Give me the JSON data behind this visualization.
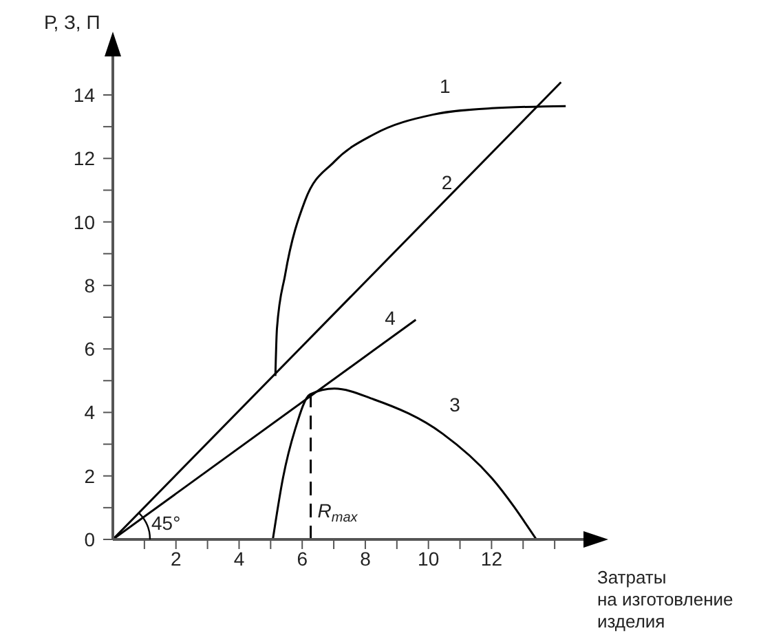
{
  "chart_data": {
    "type": "line",
    "xlabel": "Затраты\nна изготовление\nизделия",
    "ylabel": "Р, З, П",
    "xlim": [
      0,
      15
    ],
    "ylim": [
      0,
      15.3
    ],
    "xticks": [
      {
        "value": 1,
        "label": null
      },
      2,
      {
        "value": 3,
        "label": null
      },
      4,
      {
        "value": 5,
        "label": null
      },
      6,
      {
        "value": 7,
        "label": null
      },
      8,
      {
        "value": 9,
        "label": null
      },
      10,
      {
        "value": 11,
        "label": null
      },
      12,
      {
        "value": 13,
        "label": null
      },
      {
        "value": 14,
        "label": null
      }
    ],
    "yticks": [
      0,
      {
        "value": 1,
        "label": null
      },
      2,
      {
        "value": 3,
        "label": null
      },
      4,
      {
        "value": 5,
        "label": null
      },
      6,
      {
        "value": 7,
        "label": null
      },
      8,
      {
        "value": 9,
        "label": null
      },
      10,
      {
        "value": 11,
        "label": null
      },
      12,
      {
        "value": 13,
        "label": null
      },
      14
    ],
    "grid": false,
    "marker": "none",
    "line_style": "solid",
    "series": [
      {
        "color": "#000000",
        "x": [
          5.15,
          5.2,
          5.46,
          6.09,
          7.02,
          8.27,
          10.14,
          12.0,
          14.35
        ],
        "values": [
          5.15,
          6.64,
          8.34,
          10.67,
          11.9,
          12.76,
          13.38,
          13.58,
          13.65
        ]
      },
      {
        "color": "#000000",
        "x": [
          0,
          14.2
        ],
        "values": [
          0,
          14.4
        ]
      },
      {
        "color": "#000000",
        "x": [
          5.07,
          5.39,
          5.78,
          6.25,
          7.02,
          8.27,
          10.45,
          12.01,
          13.42
        ],
        "values": [
          0,
          1.93,
          3.48,
          4.57,
          4.75,
          4.41,
          3.33,
          1.93,
          0
        ]
      },
      {
        "color": "#000000",
        "x": [
          0,
          9.6
        ],
        "values": [
          0,
          6.92
        ]
      },
      {
        "color": "#000000",
        "x": [
          6.27,
          6.27
        ],
        "values": [
          0,
          4.6
        ],
        "line_style": "dashed"
      }
    ],
    "annotations": [
      {
        "text": "1",
        "x": 10.14,
        "y": 13.38
      },
      {
        "text": "2",
        "x": 10.2,
        "y": 10.34
      },
      {
        "text": "3",
        "x": 10.45,
        "y": 3.33
      },
      {
        "text": "4",
        "x": 8.4,
        "y": 6.06
      },
      "45°",
      {
        "text": "R$_{max}$",
        "x": 6.27,
        "y": 0
      }
    ]
  }
}
